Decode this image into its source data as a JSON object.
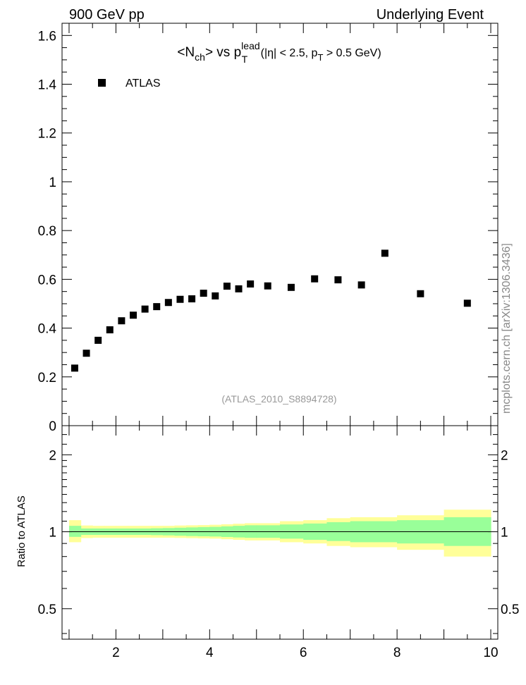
{
  "header": {
    "left_label": "900 GeV pp",
    "right_label": "Underlying Event",
    "side_label": "mcplots.cern.ch [arXiv:1306.3436]"
  },
  "chart_data": [
    {
      "type": "scatter",
      "title": "<N_ch> vs p_T^lead (|η| < 2.5, p_T > 0.5 GeV)",
      "title_parts": {
        "p1": "<N",
        "p1_sub": "ch",
        "p2": "> vs p",
        "p2_sup": "lead",
        "p2_sub": "T",
        "p3": " (|η| < 2.5, p",
        "p3_sub": "T",
        "p4": " > 0.5 GeV)"
      },
      "annotation": "(ATLAS_2010_S8894728)",
      "legend": {
        "entries": [
          "ATLAS"
        ],
        "position": "top-left"
      },
      "xlim": [
        0.85,
        10.15
      ],
      "ylim": [
        0,
        1.65
      ],
      "yticks": [
        {
          "value": 0,
          "label": "0"
        },
        {
          "value": 0.2,
          "label": "0.2"
        },
        {
          "value": 0.4,
          "label": "0.4"
        },
        {
          "value": 0.6,
          "label": "0.6"
        },
        {
          "value": 0.8,
          "label": "0.8"
        },
        {
          "value": 1.0,
          "label": "1"
        },
        {
          "value": 1.2,
          "label": "1.2"
        },
        {
          "value": 1.4,
          "label": "1.4"
        },
        {
          "value": 1.6,
          "label": "1.6"
        }
      ],
      "series": [
        {
          "name": "ATLAS",
          "color": "#000000",
          "x": [
            1.12,
            1.37,
            1.62,
            1.87,
            2.12,
            2.37,
            2.62,
            2.87,
            3.12,
            3.37,
            3.62,
            3.87,
            4.12,
            4.37,
            4.62,
            4.87,
            5.24,
            5.74,
            6.24,
            6.74,
            7.24,
            7.74,
            8.5,
            9.5
          ],
          "y": [
            0.236,
            0.297,
            0.35,
            0.393,
            0.43,
            0.453,
            0.478,
            0.488,
            0.505,
            0.518,
            0.52,
            0.543,
            0.532,
            0.572,
            0.561,
            0.581,
            0.573,
            0.567,
            0.602,
            0.598,
            0.577,
            0.707,
            0.541,
            0.502
          ]
        }
      ]
    },
    {
      "type": "area",
      "ylabel": "Ratio to ATLAS",
      "xlim": [
        0.85,
        10.15
      ],
      "ylim": [
        0.38,
        2.6
      ],
      "ylog": true,
      "xticks": [
        {
          "value": 2,
          "label": "2"
        },
        {
          "value": 4,
          "label": "4"
        },
        {
          "value": 6,
          "label": "6"
        },
        {
          "value": 8,
          "label": "8"
        },
        {
          "value": 10,
          "label": "10"
        }
      ],
      "yticks": [
        {
          "value": 0.5,
          "label": "0.5"
        },
        {
          "value": 1,
          "label": "1"
        },
        {
          "value": 2,
          "label": "2"
        }
      ],
      "reference_line": 1,
      "bins": [
        1.0,
        1.25,
        1.5,
        1.75,
        2.0,
        2.25,
        2.5,
        2.75,
        3.0,
        3.25,
        3.5,
        3.75,
        4.0,
        4.25,
        4.5,
        4.75,
        5.0,
        5.5,
        6.0,
        6.5,
        7.0,
        7.5,
        8.0,
        9.0,
        10.0
      ],
      "bands": [
        {
          "color": "#ffff99",
          "lo": [
            0.91,
            0.945,
            0.948,
            0.948,
            0.948,
            0.948,
            0.948,
            0.948,
            0.948,
            0.946,
            0.944,
            0.942,
            0.94,
            0.935,
            0.93,
            0.925,
            0.925,
            0.91,
            0.9,
            0.88,
            0.87,
            0.87,
            0.85,
            0.8
          ],
          "hi": [
            1.11,
            1.058,
            1.055,
            1.055,
            1.055,
            1.055,
            1.055,
            1.055,
            1.055,
            1.058,
            1.06,
            1.062,
            1.065,
            1.07,
            1.075,
            1.08,
            1.08,
            1.1,
            1.11,
            1.13,
            1.14,
            1.14,
            1.16,
            1.22
          ]
        },
        {
          "color": "#99ff99",
          "lo": [
            0.955,
            0.972,
            0.972,
            0.972,
            0.972,
            0.972,
            0.972,
            0.97,
            0.968,
            0.965,
            0.962,
            0.96,
            0.958,
            0.954,
            0.95,
            0.947,
            0.947,
            0.94,
            0.93,
            0.92,
            0.91,
            0.91,
            0.9,
            0.88
          ],
          "hi": [
            1.055,
            1.03,
            1.03,
            1.03,
            1.03,
            1.03,
            1.03,
            1.032,
            1.034,
            1.037,
            1.04,
            1.043,
            1.045,
            1.05,
            1.055,
            1.06,
            1.06,
            1.068,
            1.077,
            1.09,
            1.1,
            1.1,
            1.11,
            1.14
          ]
        }
      ]
    }
  ]
}
